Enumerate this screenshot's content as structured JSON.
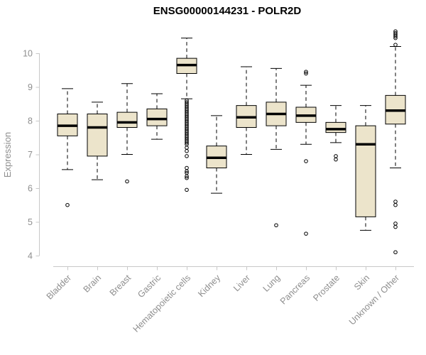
{
  "chart_data": {
    "type": "boxplot",
    "title": "ENSG00000144231 - POLR2D",
    "ylabel": "Expression",
    "xlabel": "",
    "ylim": [
      4,
      10.8
    ],
    "yticks": [
      4,
      5,
      6,
      7,
      8,
      9,
      10
    ],
    "grid": false,
    "legend": "none",
    "categories": [
      "Bladder",
      "Brain",
      "Breast",
      "Gastric",
      "Hematopoietic cells",
      "Kidney",
      "Liver",
      "Lung",
      "Pancreas",
      "Prostate",
      "Skin",
      "Unknown / Other"
    ],
    "series": [
      {
        "label": "Bladder",
        "whislo": 6.55,
        "q1": 7.55,
        "med": 7.85,
        "q3": 8.2,
        "whishi": 8.95,
        "outliers": [
          5.5
        ]
      },
      {
        "label": "Brain",
        "whislo": 6.25,
        "q1": 6.95,
        "med": 7.8,
        "q3": 8.2,
        "whishi": 8.55,
        "outliers": []
      },
      {
        "label": "Breast",
        "whislo": 7.0,
        "q1": 7.8,
        "med": 7.95,
        "q3": 8.25,
        "whishi": 9.1,
        "outliers": [
          6.2
        ]
      },
      {
        "label": "Gastric",
        "whislo": 7.45,
        "q1": 7.85,
        "med": 8.05,
        "q3": 8.35,
        "whishi": 8.8,
        "outliers": []
      },
      {
        "label": "Hematopoietic cells",
        "whislo": 8.65,
        "q1": 9.4,
        "med": 9.65,
        "q3": 9.85,
        "whishi": 10.45,
        "outliers": [
          8.6,
          8.55,
          8.5,
          8.45,
          8.4,
          8.35,
          8.3,
          8.25,
          8.2,
          8.15,
          8.1,
          8.05,
          8.0,
          7.95,
          7.9,
          7.85,
          7.8,
          7.75,
          7.7,
          7.65,
          7.6,
          7.55,
          7.5,
          7.45,
          7.4,
          7.35,
          7.3,
          7.2,
          7.1,
          6.95,
          6.6,
          6.5,
          6.45,
          6.35,
          6.3,
          5.95
        ]
      },
      {
        "label": "Kidney",
        "whislo": 5.85,
        "q1": 6.6,
        "med": 6.9,
        "q3": 7.25,
        "whishi": 8.15,
        "outliers": []
      },
      {
        "label": "Liver",
        "whislo": 7.0,
        "q1": 7.8,
        "med": 8.1,
        "q3": 8.45,
        "whishi": 9.6,
        "outliers": []
      },
      {
        "label": "Lung",
        "whislo": 7.15,
        "q1": 7.85,
        "med": 8.2,
        "q3": 8.55,
        "whishi": 9.55,
        "outliers": [
          4.9
        ]
      },
      {
        "label": "Pancreas",
        "whislo": 7.3,
        "q1": 7.95,
        "med": 8.15,
        "q3": 8.4,
        "whishi": 9.05,
        "outliers": [
          9.45,
          9.4,
          6.8,
          4.65
        ]
      },
      {
        "label": "Prostate",
        "whislo": 7.35,
        "q1": 7.65,
        "med": 7.75,
        "q3": 7.95,
        "whishi": 8.45,
        "outliers": [
          6.95,
          6.85
        ]
      },
      {
        "label": "Skin",
        "whislo": 4.75,
        "q1": 5.15,
        "med": 7.3,
        "q3": 7.85,
        "whishi": 8.45,
        "outliers": []
      },
      {
        "label": "Unknown / Other",
        "whislo": 6.6,
        "q1": 7.9,
        "med": 8.3,
        "q3": 8.75,
        "whishi": 10.2,
        "outliers": [
          10.65,
          10.6,
          10.55,
          10.5,
          10.45,
          10.25,
          5.6,
          5.5,
          4.95,
          4.85,
          4.1
        ]
      }
    ],
    "colors": {
      "box_fill": "#ece4cb",
      "box_stroke": "#000000",
      "median": "#000000",
      "axis": "#c8c8c8",
      "tick_label": "#8e8e8e",
      "title": "#000000",
      "background": "#ffffff"
    }
  }
}
